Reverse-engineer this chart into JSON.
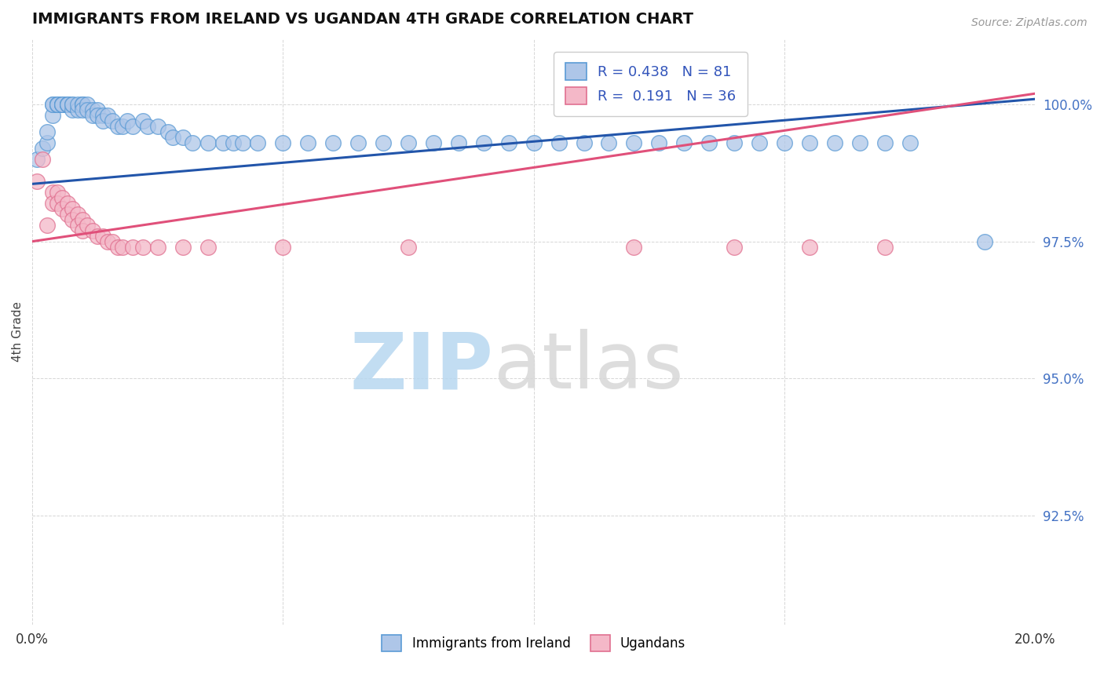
{
  "title": "IMMIGRANTS FROM IRELAND VS UGANDAN 4TH GRADE CORRELATION CHART",
  "source": "Source: ZipAtlas.com",
  "ylabel": "4th Grade",
  "xlim": [
    0.0,
    0.2
  ],
  "ylim": [
    0.905,
    1.012
  ],
  "xticks": [
    0.0,
    0.05,
    0.1,
    0.15,
    0.2
  ],
  "xticklabels": [
    "0.0%",
    "",
    "",
    "",
    "20.0%"
  ],
  "yticks": [
    0.925,
    0.95,
    0.975,
    1.0
  ],
  "yticklabels": [
    "92.5%",
    "95.0%",
    "97.5%",
    "100.0%"
  ],
  "blue_R": 0.438,
  "blue_N": 81,
  "pink_R": 0.191,
  "pink_N": 36,
  "blue_color": "#aec6e8",
  "blue_edge": "#5b9bd5",
  "pink_color": "#f4b8c8",
  "pink_edge": "#e07090",
  "blue_line_color": "#2255aa",
  "pink_line_color": "#e0507a",
  "blue_line_y0": 0.9855,
  "blue_line_y1": 1.001,
  "pink_line_y0": 0.975,
  "pink_line_y1": 1.002,
  "blue_scatter_x": [
    0.001,
    0.002,
    0.003,
    0.003,
    0.004,
    0.004,
    0.004,
    0.005,
    0.005,
    0.005,
    0.005,
    0.006,
    0.006,
    0.006,
    0.006,
    0.007,
    0.007,
    0.007,
    0.007,
    0.008,
    0.008,
    0.008,
    0.009,
    0.009,
    0.01,
    0.01,
    0.01,
    0.01,
    0.011,
    0.011,
    0.012,
    0.012,
    0.013,
    0.013,
    0.014,
    0.014,
    0.015,
    0.016,
    0.017,
    0.018,
    0.019,
    0.02,
    0.022,
    0.023,
    0.025,
    0.027,
    0.028,
    0.03,
    0.032,
    0.035,
    0.038,
    0.04,
    0.042,
    0.045,
    0.05,
    0.055,
    0.06,
    0.065,
    0.07,
    0.075,
    0.08,
    0.085,
    0.09,
    0.095,
    0.1,
    0.105,
    0.11,
    0.115,
    0.12,
    0.125,
    0.13,
    0.135,
    0.14,
    0.145,
    0.15,
    0.155,
    0.16,
    0.165,
    0.17,
    0.175,
    0.19
  ],
  "blue_scatter_y": [
    0.99,
    0.992,
    0.993,
    0.995,
    0.998,
    1.0,
    1.0,
    1.0,
    1.0,
    1.0,
    1.0,
    1.0,
    1.0,
    1.0,
    1.0,
    1.0,
    1.0,
    1.0,
    1.0,
    0.999,
    1.0,
    1.0,
    0.999,
    1.0,
    1.0,
    1.0,
    1.0,
    0.999,
    1.0,
    0.999,
    0.999,
    0.998,
    0.999,
    0.998,
    0.998,
    0.997,
    0.998,
    0.997,
    0.996,
    0.996,
    0.997,
    0.996,
    0.997,
    0.996,
    0.996,
    0.995,
    0.994,
    0.994,
    0.993,
    0.993,
    0.993,
    0.993,
    0.993,
    0.993,
    0.993,
    0.993,
    0.993,
    0.993,
    0.993,
    0.993,
    0.993,
    0.993,
    0.993,
    0.993,
    0.993,
    0.993,
    0.993,
    0.993,
    0.993,
    0.993,
    0.993,
    0.993,
    0.993,
    0.993,
    0.993,
    0.993,
    0.993,
    0.993,
    0.993,
    0.993,
    0.975
  ],
  "pink_scatter_x": [
    0.001,
    0.002,
    0.003,
    0.004,
    0.004,
    0.005,
    0.005,
    0.006,
    0.006,
    0.007,
    0.007,
    0.008,
    0.008,
    0.009,
    0.009,
    0.01,
    0.01,
    0.011,
    0.012,
    0.013,
    0.014,
    0.015,
    0.016,
    0.017,
    0.018,
    0.02,
    0.022,
    0.025,
    0.03,
    0.035,
    0.05,
    0.075,
    0.12,
    0.14,
    0.155,
    0.17
  ],
  "pink_scatter_y": [
    0.986,
    0.99,
    0.978,
    0.984,
    0.982,
    0.984,
    0.982,
    0.983,
    0.981,
    0.982,
    0.98,
    0.981,
    0.979,
    0.98,
    0.978,
    0.979,
    0.977,
    0.978,
    0.977,
    0.976,
    0.976,
    0.975,
    0.975,
    0.974,
    0.974,
    0.974,
    0.974,
    0.974,
    0.974,
    0.974,
    0.974,
    0.974,
    0.974,
    0.974,
    0.974,
    0.974
  ]
}
